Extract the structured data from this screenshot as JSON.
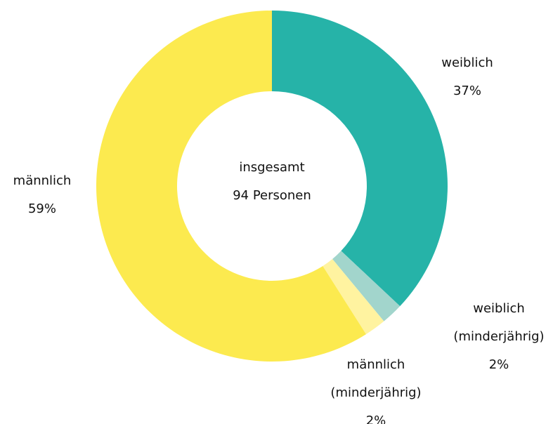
{
  "chart_data": {
    "type": "donut",
    "categories": [
      "weiblich",
      "weiblich (minderjährig)",
      "männlich (minderjährig)",
      "männlich"
    ],
    "values": [
      37,
      2,
      2,
      59
    ],
    "value_labels": [
      "37%",
      "2%",
      "2%",
      "59%"
    ],
    "colors": [
      "#26b3a8",
      "#a2d5cc",
      "#fff3a0",
      "#fcea4f"
    ],
    "center_text": [
      "insgesamt",
      "94 Personen"
    ]
  }
}
